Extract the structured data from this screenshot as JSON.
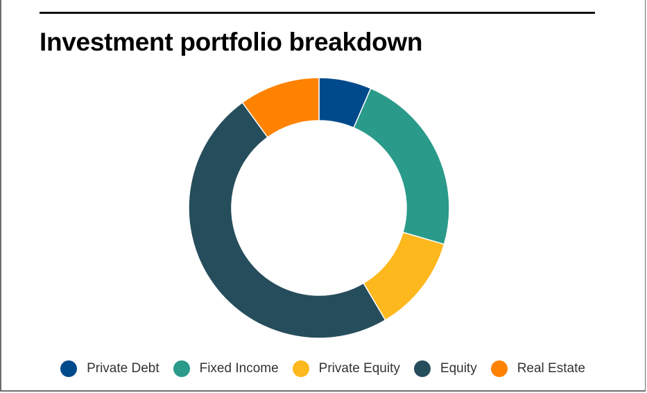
{
  "chart_data": {
    "type": "pie",
    "title": "Investment portfolio breakdown",
    "donut": true,
    "legend_position": "bottom",
    "series": [
      {
        "name": "Private Debt",
        "value": 6.5,
        "color": "#004a8c"
      },
      {
        "name": "Fixed Income",
        "value": 23.0,
        "color": "#2a9a8a"
      },
      {
        "name": "Private Equity",
        "value": 12.0,
        "color": "#fdb81e"
      },
      {
        "name": "Equity",
        "value": 48.5,
        "color": "#264d5c"
      },
      {
        "name": "Real Estate",
        "value": 10.0,
        "color": "#ff8200"
      }
    ]
  }
}
